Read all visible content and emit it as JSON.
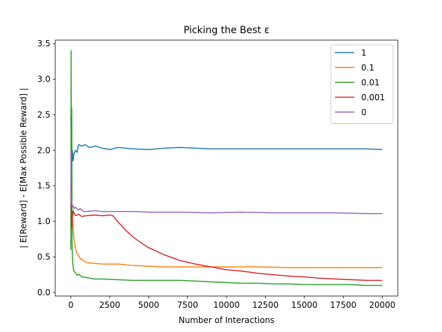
{
  "chart_data": {
    "type": "line",
    "title": "Picking the Best ε",
    "xlabel": "Number of Interactions",
    "ylabel": "| E[Reward] - E[Max Possible Reward] |",
    "xlim": [
      -1000,
      21000
    ],
    "ylim": [
      -0.05,
      3.55
    ],
    "xticks": [
      0,
      2500,
      5000,
      7500,
      10000,
      12500,
      15000,
      17500,
      20000
    ],
    "yticks": [
      0.0,
      0.5,
      1.0,
      1.5,
      2.0,
      2.5,
      3.0,
      3.5
    ],
    "xtick_labels": [
      "0",
      "2500",
      "5000",
      "7500",
      "10000",
      "12500",
      "15000",
      "17500",
      "20000"
    ],
    "ytick_labels": [
      "0.0",
      "0.5",
      "1.0",
      "1.5",
      "2.0",
      "2.5",
      "3.0",
      "3.5"
    ],
    "grid": false,
    "legend_position": "top-right",
    "series": [
      {
        "name": "1",
        "color": "#1f77b4",
        "x": [
          0,
          50,
          100,
          150,
          200,
          300,
          400,
          500,
          700,
          900,
          1200,
          1600,
          2000,
          2500,
          3000,
          4000,
          5000,
          6000,
          7000,
          8000,
          9000,
          10000,
          11000,
          12000,
          13000,
          14000,
          15000,
          16000,
          17000,
          18000,
          19000,
          20000
        ],
        "values": [
          2.5,
          1.75,
          2.0,
          1.85,
          1.95,
          2.0,
          1.97,
          2.08,
          2.06,
          2.08,
          2.04,
          2.06,
          2.03,
          2.01,
          2.04,
          2.02,
          2.01,
          2.03,
          2.04,
          2.03,
          2.02,
          2.02,
          2.02,
          2.02,
          2.02,
          2.02,
          2.02,
          2.02,
          2.02,
          2.02,
          2.02,
          2.01
        ]
      },
      {
        "name": "0.1",
        "color": "#ff7f0e",
        "x": [
          0,
          30,
          60,
          100,
          200,
          300,
          400,
          600,
          800,
          1000,
          1500,
          2000,
          2500,
          3000,
          4000,
          5000,
          6000,
          8000,
          10000,
          12000,
          14000,
          16000,
          18000,
          20000
        ],
        "values": [
          1.0,
          1.4,
          0.9,
          1.05,
          0.75,
          0.62,
          0.55,
          0.48,
          0.45,
          0.42,
          0.41,
          0.4,
          0.4,
          0.4,
          0.38,
          0.37,
          0.36,
          0.36,
          0.36,
          0.36,
          0.35,
          0.35,
          0.35,
          0.35
        ]
      },
      {
        "name": "0.01",
        "color": "#2ca02c",
        "x": [
          0,
          20,
          40,
          60,
          80,
          100,
          150,
          200,
          300,
          400,
          500,
          700,
          1000,
          1500,
          2000,
          3000,
          4000,
          5000,
          6000,
          7000,
          8000,
          9000,
          10000,
          11000,
          12000,
          13000,
          14000,
          15000,
          16000,
          17000,
          18000,
          19000,
          20000
        ],
        "values": [
          0.6,
          3.4,
          1.0,
          2.6,
          0.7,
          0.5,
          0.35,
          0.3,
          0.28,
          0.24,
          0.26,
          0.22,
          0.21,
          0.19,
          0.19,
          0.18,
          0.17,
          0.17,
          0.17,
          0.17,
          0.16,
          0.15,
          0.14,
          0.13,
          0.13,
          0.12,
          0.12,
          0.11,
          0.11,
          0.11,
          0.11,
          0.1,
          0.1
        ]
      },
      {
        "name": "0.001",
        "color": "#d62728",
        "x": [
          0,
          30,
          60,
          100,
          150,
          200,
          300,
          500,
          700,
          1000,
          1500,
          2000,
          2500,
          2700,
          3000,
          3500,
          4000,
          4500,
          5000,
          6000,
          7000,
          8000,
          9000,
          10000,
          11000,
          12000,
          13000,
          14000,
          15000,
          16000,
          17000,
          18000,
          19000,
          20000
        ],
        "values": [
          1.5,
          1.2,
          0.9,
          1.05,
          1.15,
          1.12,
          1.08,
          1.1,
          1.07,
          1.08,
          1.09,
          1.08,
          1.09,
          1.08,
          1.0,
          0.88,
          0.78,
          0.7,
          0.63,
          0.53,
          0.45,
          0.4,
          0.36,
          0.32,
          0.3,
          0.27,
          0.25,
          0.23,
          0.22,
          0.2,
          0.19,
          0.18,
          0.17,
          0.17
        ]
      },
      {
        "name": "0",
        "color": "#9467bd",
        "x": [
          0,
          30,
          60,
          100,
          150,
          200,
          300,
          400,
          500,
          600,
          800,
          1000,
          1500,
          2000,
          3000,
          4000,
          5000,
          7000,
          9000,
          11000,
          13000,
          15000,
          17000,
          19000,
          20000
        ],
        "values": [
          2.0,
          1.25,
          1.3,
          1.2,
          1.22,
          1.18,
          1.2,
          1.17,
          1.16,
          1.18,
          1.14,
          1.14,
          1.15,
          1.14,
          1.14,
          1.14,
          1.13,
          1.13,
          1.12,
          1.13,
          1.12,
          1.12,
          1.12,
          1.11,
          1.11
        ]
      }
    ]
  }
}
